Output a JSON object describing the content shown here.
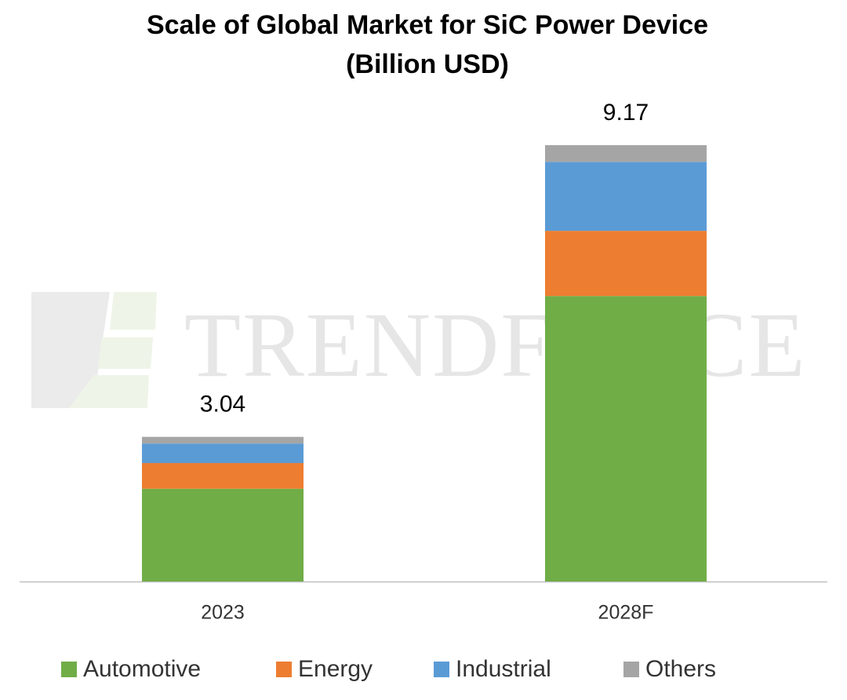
{
  "chart_data": {
    "type": "stacked-bar",
    "title": "Scale of Global Market for SiC Power Device",
    "subtitle": "(Billion USD)",
    "watermark": "TRENDFORCE",
    "categories": [
      "2023",
      "2028F"
    ],
    "totals": [
      3.04,
      9.17
    ],
    "series": [
      {
        "name": "Automotive",
        "color": "#70ad47",
        "values": [
          1.95,
          6.0
        ]
      },
      {
        "name": "Energy",
        "color": "#ed7d31",
        "values": [
          0.54,
          1.37
        ]
      },
      {
        "name": "Industrial",
        "color": "#5b9bd5",
        "values": [
          0.41,
          1.45
        ]
      },
      {
        "name": "Others",
        "color": "#a5a5a5",
        "values": [
          0.14,
          0.35
        ]
      }
    ],
    "legend": "bottom"
  }
}
